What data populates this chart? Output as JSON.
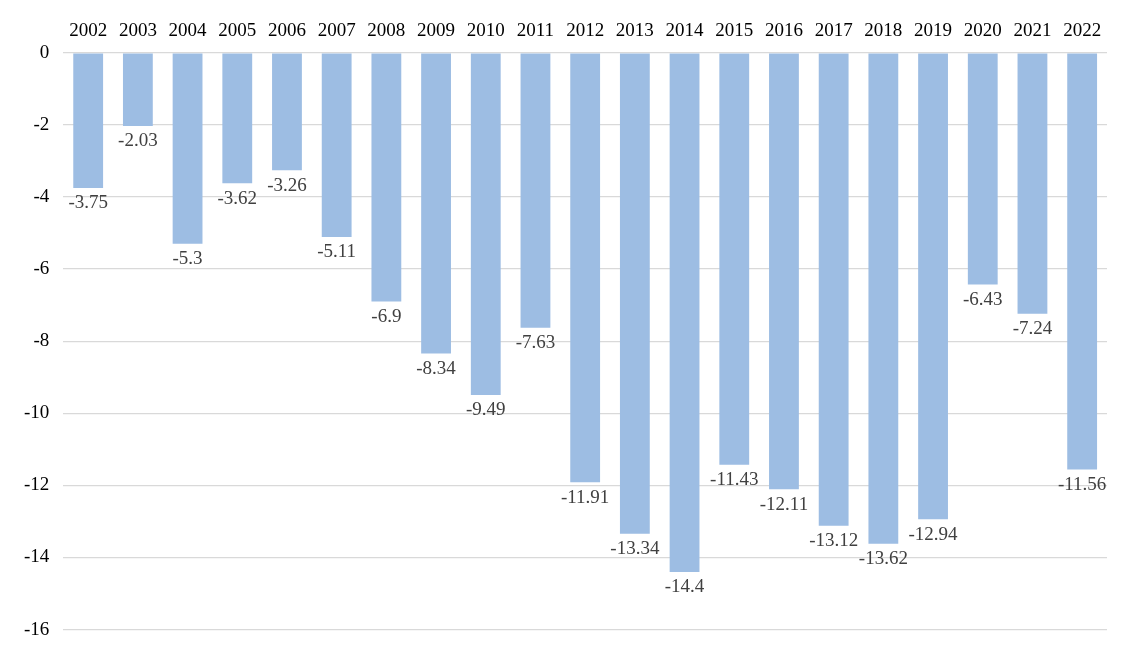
{
  "chart_data": {
    "type": "bar",
    "categories": [
      "2002",
      "2003",
      "2004",
      "2005",
      "2006",
      "2007",
      "2008",
      "2009",
      "2010",
      "2011",
      "2012",
      "2013",
      "2014",
      "2015",
      "2016",
      "2017",
      "2018",
      "2019",
      "2020",
      "2021",
      "2022"
    ],
    "values": [
      -3.75,
      -2.03,
      -5.3,
      -3.62,
      -3.26,
      -5.11,
      -6.9,
      -8.34,
      -9.49,
      -7.63,
      -11.91,
      -13.34,
      -14.4,
      -11.43,
      -12.11,
      -13.12,
      -13.62,
      -12.94,
      -6.43,
      -7.24,
      -11.56
    ],
    "color": "#9dbde3",
    "ylim": [
      -16,
      0
    ],
    "yticks": [
      0,
      -2,
      -4,
      -6,
      -8,
      -10,
      -12,
      -14,
      -16
    ],
    "grid": "y",
    "legend": false,
    "data_labels": true
  }
}
